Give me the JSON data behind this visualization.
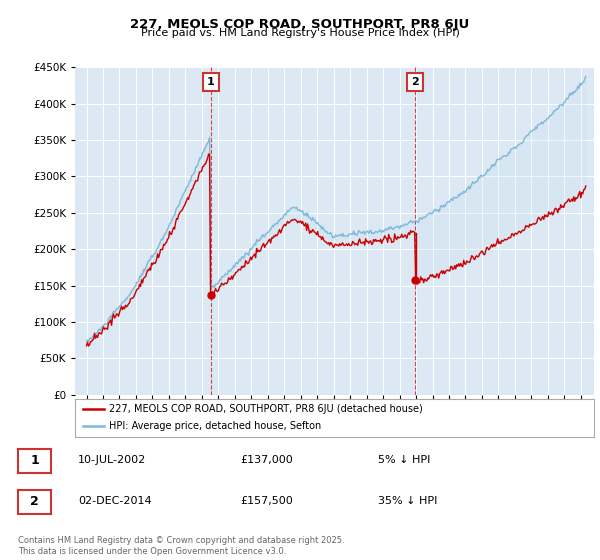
{
  "title": "227, MEOLS COP ROAD, SOUTHPORT, PR8 6JU",
  "subtitle": "Price paid vs. HM Land Registry's House Price Index (HPI)",
  "hpi_label": "HPI: Average price, detached house, Sefton",
  "property_label": "227, MEOLS COP ROAD, SOUTHPORT, PR8 6JU (detached house)",
  "hpi_color": "#7fb8d8",
  "property_color": "#cc0000",
  "fill_color": "#c5dff0",
  "annotation1": {
    "label": "1",
    "date": "10-JUL-2002",
    "price": "£137,000",
    "pct": "5% ↓ HPI"
  },
  "annotation2": {
    "label": "2",
    "date": "02-DEC-2014",
    "price": "£157,500",
    "pct": "35% ↓ HPI"
  },
  "ylim": [
    0,
    450000
  ],
  "yticks": [
    0,
    50000,
    100000,
    150000,
    200000,
    250000,
    300000,
    350000,
    400000,
    450000
  ],
  "plot_bg": "#dce9f5",
  "grid_color": "#ffffff",
  "sale1_time": 2002.55,
  "sale2_time": 2014.92,
  "sale1_price": 137000,
  "sale2_price": 157500,
  "footer": "Contains HM Land Registry data © Crown copyright and database right 2025.\nThis data is licensed under the Open Government Licence v3.0."
}
